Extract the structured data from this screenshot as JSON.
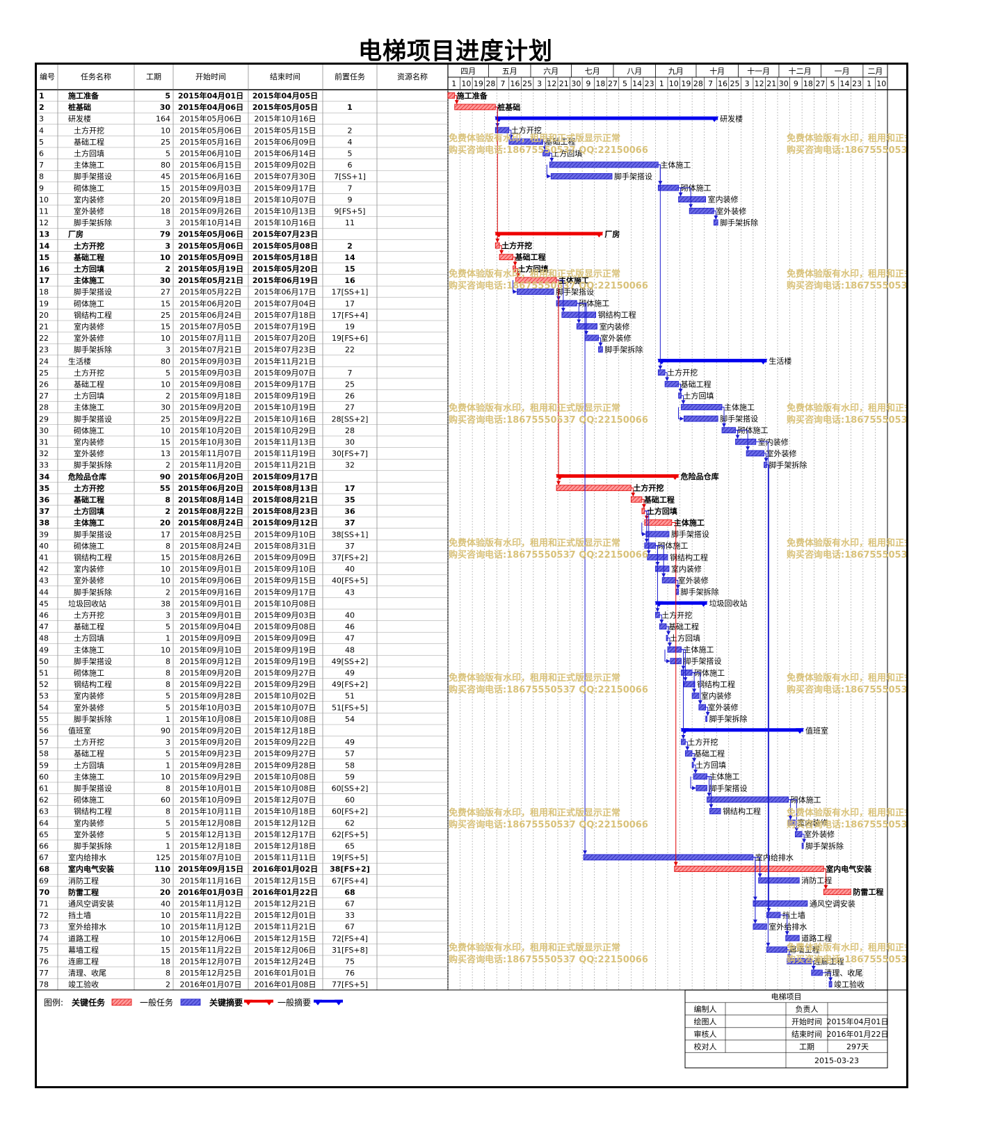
{
  "title": "电梯项目进度计划",
  "columns": [
    "编号",
    "任务名称",
    "工期",
    "开始时间",
    "结束时间",
    "前置任务",
    "资源名称"
  ],
  "months": [
    "四月",
    "五月",
    "六月",
    "七月",
    "八月",
    "九月",
    "十月",
    "十一月",
    "十二月",
    "一月",
    "二月"
  ],
  "day_ticks": [
    {
      "day": "1",
      "date": "2015-04-01"
    },
    {
      "day": "10",
      "date": "2015-04-10"
    },
    {
      "day": "19",
      "date": "2015-04-19"
    },
    {
      "day": "28",
      "date": "2015-04-28"
    },
    {
      "day": "7",
      "date": "2015-05-07"
    },
    {
      "day": "16",
      "date": "2015-05-16"
    },
    {
      "day": "25",
      "date": "2015-05-25"
    },
    {
      "day": "3",
      "date": "2015-06-03"
    },
    {
      "day": "12",
      "date": "2015-06-12"
    },
    {
      "day": "21",
      "date": "2015-06-21"
    },
    {
      "day": "30",
      "date": "2015-06-30"
    },
    {
      "day": "9",
      "date": "2015-07-09"
    },
    {
      "day": "18",
      "date": "2015-07-18"
    },
    {
      "day": "27",
      "date": "2015-07-27"
    },
    {
      "day": "5",
      "date": "2015-08-05"
    },
    {
      "day": "14",
      "date": "2015-08-14"
    },
    {
      "day": "23",
      "date": "2015-08-23"
    },
    {
      "day": "1",
      "date": "2015-09-01"
    },
    {
      "day": "10",
      "date": "2015-09-10"
    },
    {
      "day": "19",
      "date": "2015-09-19"
    },
    {
      "day": "28",
      "date": "2015-09-28"
    },
    {
      "day": "7",
      "date": "2015-10-07"
    },
    {
      "day": "16",
      "date": "2015-10-16"
    },
    {
      "day": "25",
      "date": "2015-10-25"
    },
    {
      "day": "3",
      "date": "2015-11-03"
    },
    {
      "day": "12",
      "date": "2015-11-12"
    },
    {
      "day": "21",
      "date": "2015-11-21"
    },
    {
      "day": "30",
      "date": "2015-11-30"
    },
    {
      "day": "9",
      "date": "2015-12-09"
    },
    {
      "day": "18",
      "date": "2015-12-18"
    },
    {
      "day": "27",
      "date": "2015-12-27"
    },
    {
      "day": "5",
      "date": "2016-01-05"
    },
    {
      "day": "14",
      "date": "2016-01-14"
    },
    {
      "day": "23",
      "date": "2016-01-23"
    },
    {
      "day": "1",
      "date": "2016-02-01"
    },
    {
      "day": "10",
      "date": "2016-02-10"
    }
  ],
  "chart_data": {
    "type": "gantt",
    "start": "2015-04-01",
    "end": "2016-02-19",
    "tasks": [
      {
        "id": "1",
        "name": "施工准备",
        "dur": "5",
        "start": "2015年04月01日",
        "end": "2015年04月05日",
        "pred": "",
        "level": 0,
        "kind": "critical-task"
      },
      {
        "id": "2",
        "name": "桩基础",
        "dur": "30",
        "start": "2015年04月06日",
        "end": "2015年05月05日",
        "pred": "1",
        "level": 0,
        "kind": "critical-task"
      },
      {
        "id": "3",
        "name": "研发楼",
        "dur": "164",
        "start": "2015年05月06日",
        "end": "2015年10月16日",
        "pred": "",
        "level": 0,
        "kind": "summary"
      },
      {
        "id": "4",
        "name": "土方开挖",
        "dur": "10",
        "start": "2015年05月06日",
        "end": "2015年05月15日",
        "pred": "2",
        "level": 1,
        "kind": "task"
      },
      {
        "id": "5",
        "name": "基础工程",
        "dur": "25",
        "start": "2015年05月16日",
        "end": "2015年06月09日",
        "pred": "4",
        "level": 1,
        "kind": "task"
      },
      {
        "id": "6",
        "name": "土方回填",
        "dur": "5",
        "start": "2015年06月10日",
        "end": "2015年06月14日",
        "pred": "5",
        "level": 1,
        "kind": "task"
      },
      {
        "id": "7",
        "name": "主体施工",
        "dur": "80",
        "start": "2015年06月15日",
        "end": "2015年09月02日",
        "pred": "6",
        "level": 1,
        "kind": "task"
      },
      {
        "id": "8",
        "name": "脚手架搭设",
        "dur": "45",
        "start": "2015年06月16日",
        "end": "2015年07月30日",
        "pred": "7[SS+1]",
        "level": 1,
        "kind": "task"
      },
      {
        "id": "9",
        "name": "砌体施工",
        "dur": "15",
        "start": "2015年09月03日",
        "end": "2015年09月17日",
        "pred": "7",
        "level": 1,
        "kind": "task"
      },
      {
        "id": "10",
        "name": "室内装修",
        "dur": "20",
        "start": "2015年09月18日",
        "end": "2015年10月07日",
        "pred": "9",
        "level": 1,
        "kind": "task"
      },
      {
        "id": "11",
        "name": "室外装修",
        "dur": "18",
        "start": "2015年09月26日",
        "end": "2015年10月13日",
        "pred": "9[FS+5]",
        "level": 1,
        "kind": "task"
      },
      {
        "id": "12",
        "name": "脚手架拆除",
        "dur": "3",
        "start": "2015年10月14日",
        "end": "2015年10月16日",
        "pred": "11",
        "level": 1,
        "kind": "task"
      },
      {
        "id": "13",
        "name": "厂房",
        "dur": "79",
        "start": "2015年05月06日",
        "end": "2015年07月23日",
        "pred": "",
        "level": 0,
        "kind": "critical-summary"
      },
      {
        "id": "14",
        "name": "土方开挖",
        "dur": "3",
        "start": "2015年05月06日",
        "end": "2015年05月08日",
        "pred": "2",
        "level": 1,
        "kind": "critical-task"
      },
      {
        "id": "15",
        "name": "基础工程",
        "dur": "10",
        "start": "2015年05月09日",
        "end": "2015年05月18日",
        "pred": "14",
        "level": 1,
        "kind": "critical-task"
      },
      {
        "id": "16",
        "name": "土方回填",
        "dur": "2",
        "start": "2015年05月19日",
        "end": "2015年05月20日",
        "pred": "15",
        "level": 1,
        "kind": "critical-task"
      },
      {
        "id": "17",
        "name": "主体施工",
        "dur": "30",
        "start": "2015年05月21日",
        "end": "2015年06月19日",
        "pred": "16",
        "level": 1,
        "kind": "critical-task"
      },
      {
        "id": "18",
        "name": "脚手架搭设",
        "dur": "27",
        "start": "2015年05月22日",
        "end": "2015年06月17日",
        "pred": "17[SS+1]",
        "level": 1,
        "kind": "task"
      },
      {
        "id": "19",
        "name": "砌体施工",
        "dur": "15",
        "start": "2015年06月20日",
        "end": "2015年07月04日",
        "pred": "17",
        "level": 1,
        "kind": "task"
      },
      {
        "id": "20",
        "name": "钢结构工程",
        "dur": "25",
        "start": "2015年06月24日",
        "end": "2015年07月18日",
        "pred": "17[FS+4]",
        "level": 1,
        "kind": "task"
      },
      {
        "id": "21",
        "name": "室内装修",
        "dur": "15",
        "start": "2015年07月05日",
        "end": "2015年07月19日",
        "pred": "19",
        "level": 1,
        "kind": "task"
      },
      {
        "id": "22",
        "name": "室外装修",
        "dur": "10",
        "start": "2015年07月11日",
        "end": "2015年07月20日",
        "pred": "19[FS+6]",
        "level": 1,
        "kind": "task"
      },
      {
        "id": "23",
        "name": "脚手架拆除",
        "dur": "3",
        "start": "2015年07月21日",
        "end": "2015年07月23日",
        "pred": "22",
        "level": 1,
        "kind": "task"
      },
      {
        "id": "24",
        "name": "生活楼",
        "dur": "80",
        "start": "2015年09月03日",
        "end": "2015年11月21日",
        "pred": "",
        "level": 0,
        "kind": "summary"
      },
      {
        "id": "25",
        "name": "土方开挖",
        "dur": "5",
        "start": "2015年09月03日",
        "end": "2015年09月07日",
        "pred": "7",
        "level": 1,
        "kind": "task"
      },
      {
        "id": "26",
        "name": "基础工程",
        "dur": "10",
        "start": "2015年09月08日",
        "end": "2015年09月17日",
        "pred": "25",
        "level": 1,
        "kind": "task"
      },
      {
        "id": "27",
        "name": "土方回填",
        "dur": "2",
        "start": "2015年09月18日",
        "end": "2015年09月19日",
        "pred": "26",
        "level": 1,
        "kind": "task"
      },
      {
        "id": "28",
        "name": "主体施工",
        "dur": "30",
        "start": "2015年09月20日",
        "end": "2015年10月19日",
        "pred": "27",
        "level": 1,
        "kind": "task"
      },
      {
        "id": "29",
        "name": "脚手架搭设",
        "dur": "25",
        "start": "2015年09月22日",
        "end": "2015年10月16日",
        "pred": "28[SS+2]",
        "level": 1,
        "kind": "task"
      },
      {
        "id": "30",
        "name": "砌体施工",
        "dur": "10",
        "start": "2015年10月20日",
        "end": "2015年10月29日",
        "pred": "28",
        "level": 1,
        "kind": "task"
      },
      {
        "id": "31",
        "name": "室内装修",
        "dur": "15",
        "start": "2015年10月30日",
        "end": "2015年11月13日",
        "pred": "30",
        "level": 1,
        "kind": "task"
      },
      {
        "id": "32",
        "name": "室外装修",
        "dur": "13",
        "start": "2015年11月07日",
        "end": "2015年11月19日",
        "pred": "30[FS+7]",
        "level": 1,
        "kind": "task"
      },
      {
        "id": "33",
        "name": "脚手架拆除",
        "dur": "2",
        "start": "2015年11月20日",
        "end": "2015年11月21日",
        "pred": "32",
        "level": 1,
        "kind": "task"
      },
      {
        "id": "34",
        "name": "危险品仓库",
        "dur": "90",
        "start": "2015年06月20日",
        "end": "2015年09月17日",
        "pred": "",
        "level": 0,
        "kind": "critical-summary"
      },
      {
        "id": "35",
        "name": "土方开挖",
        "dur": "55",
        "start": "2015年06月20日",
        "end": "2015年08月13日",
        "pred": "17",
        "level": 1,
        "kind": "critical-task"
      },
      {
        "id": "36",
        "name": "基础工程",
        "dur": "8",
        "start": "2015年08月14日",
        "end": "2015年08月21日",
        "pred": "35",
        "level": 1,
        "kind": "critical-task"
      },
      {
        "id": "37",
        "name": "土方回填",
        "dur": "2",
        "start": "2015年08月22日",
        "end": "2015年08月23日",
        "pred": "36",
        "level": 1,
        "kind": "critical-task"
      },
      {
        "id": "38",
        "name": "主体施工",
        "dur": "20",
        "start": "2015年08月24日",
        "end": "2015年09月12日",
        "pred": "37",
        "level": 1,
        "kind": "critical-task"
      },
      {
        "id": "39",
        "name": "脚手架搭设",
        "dur": "17",
        "start": "2015年08月25日",
        "end": "2015年09月10日",
        "pred": "38[SS+1]",
        "level": 1,
        "kind": "task"
      },
      {
        "id": "40",
        "name": "砌体施工",
        "dur": "8",
        "start": "2015年08月24日",
        "end": "2015年08月31日",
        "pred": "37",
        "level": 1,
        "kind": "task"
      },
      {
        "id": "41",
        "name": "钢结构工程",
        "dur": "15",
        "start": "2015年08月26日",
        "end": "2015年09月09日",
        "pred": "37[FS+2]",
        "level": 1,
        "kind": "task"
      },
      {
        "id": "42",
        "name": "室内装修",
        "dur": "10",
        "start": "2015年09月01日",
        "end": "2015年09月10日",
        "pred": "40",
        "level": 1,
        "kind": "task"
      },
      {
        "id": "43",
        "name": "室外装修",
        "dur": "10",
        "start": "2015年09月06日",
        "end": "2015年09月15日",
        "pred": "40[FS+5]",
        "level": 1,
        "kind": "task"
      },
      {
        "id": "44",
        "name": "脚手架拆除",
        "dur": "2",
        "start": "2015年09月16日",
        "end": "2015年09月17日",
        "pred": "43",
        "level": 1,
        "kind": "task"
      },
      {
        "id": "45",
        "name": "垃圾回收站",
        "dur": "38",
        "start": "2015年09月01日",
        "end": "2015年10月08日",
        "pred": "",
        "level": 0,
        "kind": "summary"
      },
      {
        "id": "46",
        "name": "土方开挖",
        "dur": "3",
        "start": "2015年09月01日",
        "end": "2015年09月03日",
        "pred": "40",
        "level": 1,
        "kind": "task"
      },
      {
        "id": "47",
        "name": "基础工程",
        "dur": "5",
        "start": "2015年09月04日",
        "end": "2015年09月08日",
        "pred": "46",
        "level": 1,
        "kind": "task"
      },
      {
        "id": "48",
        "name": "土方回填",
        "dur": "1",
        "start": "2015年09月09日",
        "end": "2015年09月09日",
        "pred": "47",
        "level": 1,
        "kind": "task"
      },
      {
        "id": "49",
        "name": "主体施工",
        "dur": "10",
        "start": "2015年09月10日",
        "end": "2015年09月19日",
        "pred": "48",
        "level": 1,
        "kind": "task"
      },
      {
        "id": "50",
        "name": "脚手架搭设",
        "dur": "8",
        "start": "2015年09月12日",
        "end": "2015年09月19日",
        "pred": "49[SS+2]",
        "level": 1,
        "kind": "task"
      },
      {
        "id": "51",
        "name": "砌体施工",
        "dur": "8",
        "start": "2015年09月20日",
        "end": "2015年09月27日",
        "pred": "49",
        "level": 1,
        "kind": "task"
      },
      {
        "id": "52",
        "name": "钢结构工程",
        "dur": "8",
        "start": "2015年09月22日",
        "end": "2015年09月29日",
        "pred": "49[FS+2]",
        "level": 1,
        "kind": "task"
      },
      {
        "id": "53",
        "name": "室内装修",
        "dur": "5",
        "start": "2015年09月28日",
        "end": "2015年10月02日",
        "pred": "51",
        "level": 1,
        "kind": "task"
      },
      {
        "id": "54",
        "name": "室外装修",
        "dur": "5",
        "start": "2015年10月03日",
        "end": "2015年10月07日",
        "pred": "51[FS+5]",
        "level": 1,
        "kind": "task"
      },
      {
        "id": "55",
        "name": "脚手架拆除",
        "dur": "1",
        "start": "2015年10月08日",
        "end": "2015年10月08日",
        "pred": "54",
        "level": 1,
        "kind": "task"
      },
      {
        "id": "56",
        "name": "值班室",
        "dur": "90",
        "start": "2015年09月20日",
        "end": "2015年12月18日",
        "pred": "",
        "level": 0,
        "kind": "summary"
      },
      {
        "id": "57",
        "name": "土方开挖",
        "dur": "3",
        "start": "2015年09月20日",
        "end": "2015年09月22日",
        "pred": "49",
        "level": 1,
        "kind": "task"
      },
      {
        "id": "58",
        "name": "基础工程",
        "dur": "5",
        "start": "2015年09月23日",
        "end": "2015年09月27日",
        "pred": "57",
        "level": 1,
        "kind": "task"
      },
      {
        "id": "59",
        "name": "土方回填",
        "dur": "1",
        "start": "2015年09月28日",
        "end": "2015年09月28日",
        "pred": "58",
        "level": 1,
        "kind": "task"
      },
      {
        "id": "60",
        "name": "主体施工",
        "dur": "10",
        "start": "2015年09月29日",
        "end": "2015年10月08日",
        "pred": "59",
        "level": 1,
        "kind": "task"
      },
      {
        "id": "61",
        "name": "脚手架搭设",
        "dur": "8",
        "start": "2015年10月01日",
        "end": "2015年10月08日",
        "pred": "60[SS+2]",
        "level": 1,
        "kind": "task"
      },
      {
        "id": "62",
        "name": "砌体施工",
        "dur": "60",
        "start": "2015年10月09日",
        "end": "2015年12月07日",
        "pred": "60",
        "level": 1,
        "kind": "task"
      },
      {
        "id": "63",
        "name": "钢结构工程",
        "dur": "8",
        "start": "2015年10月11日",
        "end": "2015年10月18日",
        "pred": "60[FS+2]",
        "level": 1,
        "kind": "task"
      },
      {
        "id": "64",
        "name": "室内装修",
        "dur": "5",
        "start": "2015年12月08日",
        "end": "2015年12月12日",
        "pred": "62",
        "level": 1,
        "kind": "task"
      },
      {
        "id": "65",
        "name": "室外装修",
        "dur": "5",
        "start": "2015年12月13日",
        "end": "2015年12月17日",
        "pred": "62[FS+5]",
        "level": 1,
        "kind": "task"
      },
      {
        "id": "66",
        "name": "脚手架拆除",
        "dur": "1",
        "start": "2015年12月18日",
        "end": "2015年12月18日",
        "pred": "65",
        "level": 1,
        "kind": "task"
      },
      {
        "id": "67",
        "name": "室内给排水",
        "dur": "125",
        "start": "2015年07月10日",
        "end": "2015年11月11日",
        "pred": "19[FS+5]",
        "level": 0,
        "kind": "task"
      },
      {
        "id": "68",
        "name": "室内电气安装",
        "dur": "110",
        "start": "2015年09月15日",
        "end": "2016年01月02日",
        "pred": "38[FS+2]",
        "level": 0,
        "kind": "critical-task"
      },
      {
        "id": "69",
        "name": "消防工程",
        "dur": "30",
        "start": "2015年11月16日",
        "end": "2015年12月15日",
        "pred": "67[FS+4]",
        "level": 0,
        "kind": "task"
      },
      {
        "id": "70",
        "name": "防雷工程",
        "dur": "20",
        "start": "2016年01月03日",
        "end": "2016年01月22日",
        "pred": "68",
        "level": 0,
        "kind": "critical-task"
      },
      {
        "id": "71",
        "name": "通风空调安装",
        "dur": "40",
        "start": "2015年11月12日",
        "end": "2015年12月21日",
        "pred": "67",
        "level": 0,
        "kind": "task"
      },
      {
        "id": "72",
        "name": "挡土墙",
        "dur": "10",
        "start": "2015年11月22日",
        "end": "2015年12月01日",
        "pred": "33",
        "level": 0,
        "kind": "task"
      },
      {
        "id": "73",
        "name": "室外给排水",
        "dur": "10",
        "start": "2015年11月12日",
        "end": "2015年11月21日",
        "pred": "67",
        "level": 0,
        "kind": "task"
      },
      {
        "id": "74",
        "name": "道路工程",
        "dur": "10",
        "start": "2015年12月06日",
        "end": "2015年12月15日",
        "pred": "72[FS+4]",
        "level": 0,
        "kind": "task"
      },
      {
        "id": "75",
        "name": "幕墙工程",
        "dur": "15",
        "start": "2015年11月22日",
        "end": "2015年12月06日",
        "pred": "31[FS+8]",
        "level": 0,
        "kind": "task"
      },
      {
        "id": "76",
        "name": "连廊工程",
        "dur": "18",
        "start": "2015年12月07日",
        "end": "2015年12月24日",
        "pred": "75",
        "level": 0,
        "kind": "task"
      },
      {
        "id": "77",
        "name": "清理、收尾",
        "dur": "8",
        "start": "2015年12月25日",
        "end": "2016年01月01日",
        "pred": "76",
        "level": 0,
        "kind": "task"
      },
      {
        "id": "78",
        "name": "竣工验收",
        "dur": "2",
        "start": "2016年01月07日",
        "end": "2016年01月08日",
        "pred": "77[FS+5]",
        "level": 0,
        "kind": "task"
      }
    ]
  },
  "watermark": {
    "line1": "免费体验版有水印，租用和正式版显示正常",
    "line2": "购买咨询电话:18675550537 QQ:22150066"
  },
  "legend": {
    "label": "图例:",
    "items": [
      "关键任务",
      "一般任务",
      "关键摘要",
      "一般摘要"
    ]
  },
  "info_box": {
    "title": "电梯项目",
    "rows": [
      [
        "编制人",
        "",
        "负责人",
        ""
      ],
      [
        "绘图人",
        "",
        "开始时间",
        "2015年04月01日"
      ],
      [
        "审核人",
        "",
        "结束时间",
        "2016年01月22日"
      ],
      [
        "校对人",
        "",
        "工期",
        "297天"
      ]
    ],
    "date": "2015-03-23"
  },
  "colors": {
    "critical": "#ff4040",
    "normal": "#3b3bd6",
    "summary_blue": "#0000ee",
    "summary_red": "#ee0000",
    "watermark": "#d9c27a"
  }
}
